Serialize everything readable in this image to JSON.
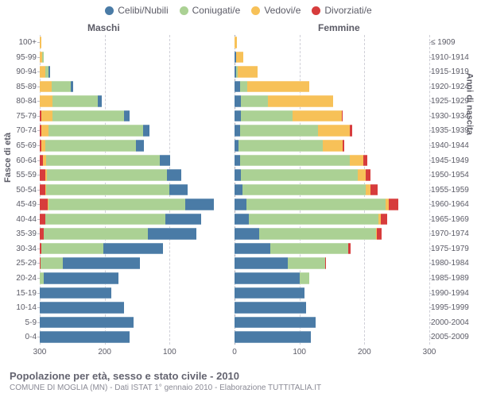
{
  "chart": {
    "type": "population-pyramid",
    "title": "Popolazione per età, sesso e stato civile - 2010",
    "subtitle": "COMUNE DI MOGLIA (MN) - Dati ISTAT 1° gennaio 2010 - Elaborazione TUTTITALIA.IT",
    "left_axis_label": "Fasce di età",
    "right_axis_label": "Anni di nascita",
    "header_male": "Maschi",
    "header_female": "Femmine",
    "legend": [
      {
        "label": "Celibi/Nubili",
        "color": "#4a7ba6"
      },
      {
        "label": "Coniugati/e",
        "color": "#abd194"
      },
      {
        "label": "Vedovi/e",
        "color": "#f7c158"
      },
      {
        "label": "Divorziati/e",
        "color": "#d73c3c"
      }
    ],
    "colors": {
      "celibi": "#4a7ba6",
      "coniugati": "#abd194",
      "vedovi": "#f7c158",
      "divorziati": "#d73c3c",
      "grid": "#cfcfd7",
      "center": "#a9a9b5",
      "text": "#5b5b66",
      "background": "#ffffff"
    },
    "title_fontsize": 13,
    "subtitle_fontsize": 10,
    "label_fontsize": 10,
    "x_max": 300,
    "x_ticks": [
      300,
      200,
      100,
      0,
      100,
      200,
      300
    ],
    "age_bands": [
      {
        "age": "100+",
        "birth": "≤ 1909",
        "m": {
          "cel": 0,
          "con": 0,
          "ved": 2,
          "div": 0
        },
        "f": {
          "cel": 0,
          "con": 0,
          "ved": 4,
          "div": 0
        }
      },
      {
        "age": "95-99",
        "birth": "1910-1914",
        "m": {
          "cel": 0,
          "con": 2,
          "ved": 4,
          "div": 0
        },
        "f": {
          "cel": 2,
          "con": 0,
          "ved": 12,
          "div": 0
        }
      },
      {
        "age": "90-94",
        "birth": "1915-1919",
        "m": {
          "cel": 2,
          "con": 6,
          "ved": 8,
          "div": 0
        },
        "f": {
          "cel": 3,
          "con": 2,
          "ved": 30,
          "div": 0
        }
      },
      {
        "age": "85-89",
        "birth": "1920-1924",
        "m": {
          "cel": 4,
          "con": 30,
          "ved": 18,
          "div": 0
        },
        "f": {
          "cel": 8,
          "con": 12,
          "ved": 95,
          "div": 0
        }
      },
      {
        "age": "80-84",
        "birth": "1925-1929",
        "m": {
          "cel": 6,
          "con": 70,
          "ved": 20,
          "div": 0
        },
        "f": {
          "cel": 10,
          "con": 42,
          "ved": 100,
          "div": 0
        }
      },
      {
        "age": "75-79",
        "birth": "1930-1934",
        "m": {
          "cel": 8,
          "con": 110,
          "ved": 18,
          "div": 2
        },
        "f": {
          "cel": 10,
          "con": 80,
          "ved": 75,
          "div": 2
        }
      },
      {
        "age": "70-74",
        "birth": "1935-1939",
        "m": {
          "cel": 10,
          "con": 145,
          "ved": 12,
          "div": 2
        },
        "f": {
          "cel": 8,
          "con": 120,
          "ved": 50,
          "div": 3
        }
      },
      {
        "age": "65-69",
        "birth": "1940-1944",
        "m": {
          "cel": 12,
          "con": 140,
          "ved": 6,
          "div": 2
        },
        "f": {
          "cel": 6,
          "con": 130,
          "ved": 30,
          "div": 3
        }
      },
      {
        "age": "60-64",
        "birth": "1945-1949",
        "m": {
          "cel": 16,
          "con": 175,
          "ved": 5,
          "div": 5
        },
        "f": {
          "cel": 8,
          "con": 170,
          "ved": 20,
          "div": 6
        }
      },
      {
        "age": "55-59",
        "birth": "1950-1954",
        "m": {
          "cel": 22,
          "con": 185,
          "ved": 3,
          "div": 8
        },
        "f": {
          "cel": 10,
          "con": 180,
          "ved": 12,
          "div": 8
        }
      },
      {
        "age": "50-54",
        "birth": "1955-1959",
        "m": {
          "cel": 28,
          "con": 190,
          "ved": 2,
          "div": 8
        },
        "f": {
          "cel": 12,
          "con": 190,
          "ved": 8,
          "div": 10
        }
      },
      {
        "age": "45-49",
        "birth": "1960-1964",
        "m": {
          "cel": 44,
          "con": 210,
          "ved": 2,
          "div": 12
        },
        "f": {
          "cel": 18,
          "con": 215,
          "ved": 5,
          "div": 14
        }
      },
      {
        "age": "40-44",
        "birth": "1965-1969",
        "m": {
          "cel": 55,
          "con": 185,
          "ved": 1,
          "div": 8
        },
        "f": {
          "cel": 22,
          "con": 200,
          "ved": 3,
          "div": 10
        }
      },
      {
        "age": "35-39",
        "birth": "1970-1974",
        "m": {
          "cel": 75,
          "con": 160,
          "ved": 0,
          "div": 6
        },
        "f": {
          "cel": 38,
          "con": 180,
          "ved": 1,
          "div": 8
        }
      },
      {
        "age": "30-34",
        "birth": "1975-1979",
        "m": {
          "cel": 92,
          "con": 95,
          "ved": 0,
          "div": 3
        },
        "f": {
          "cel": 55,
          "con": 120,
          "ved": 0,
          "div": 4
        }
      },
      {
        "age": "25-29",
        "birth": "1980-1984",
        "m": {
          "cel": 118,
          "con": 35,
          "ved": 0,
          "div": 1
        },
        "f": {
          "cel": 82,
          "con": 58,
          "ved": 0,
          "div": 1
        }
      },
      {
        "age": "20-24",
        "birth": "1985-1989",
        "m": {
          "cel": 115,
          "con": 6,
          "ved": 0,
          "div": 0
        },
        "f": {
          "cel": 100,
          "con": 15,
          "ved": 0,
          "div": 0
        }
      },
      {
        "age": "15-19",
        "birth": "1990-1994",
        "m": {
          "cel": 110,
          "con": 0,
          "ved": 0,
          "div": 0
        },
        "f": {
          "cel": 108,
          "con": 0,
          "ved": 0,
          "div": 0
        }
      },
      {
        "age": "10-14",
        "birth": "1995-1999",
        "m": {
          "cel": 130,
          "con": 0,
          "ved": 0,
          "div": 0
        },
        "f": {
          "cel": 110,
          "con": 0,
          "ved": 0,
          "div": 0
        }
      },
      {
        "age": "5-9",
        "birth": "2000-2004",
        "m": {
          "cel": 145,
          "con": 0,
          "ved": 0,
          "div": 0
        },
        "f": {
          "cel": 125,
          "con": 0,
          "ved": 0,
          "div": 0
        }
      },
      {
        "age": "0-4",
        "birth": "2005-2009",
        "m": {
          "cel": 138,
          "con": 0,
          "ved": 0,
          "div": 0
        },
        "f": {
          "cel": 118,
          "con": 0,
          "ved": 0,
          "div": 0
        }
      }
    ]
  }
}
